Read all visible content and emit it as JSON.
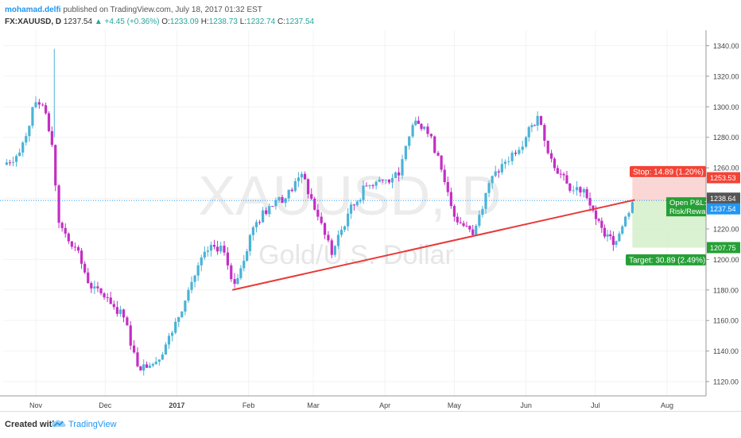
{
  "header": {
    "author": "mohamad.delfi",
    "published_text": "published on TradingView.com, July 18, 2017 01:32 EST"
  },
  "ohlc": {
    "symbol": "FX:XAUUSD, D",
    "close": "1237.54",
    "change": "+4.45 (+0.36%)",
    "o_label": "O:",
    "o": "1233.09",
    "h_label": "H:",
    "h": "1238.73",
    "l_label": "L:",
    "l": "1232.74",
    "c_label": "C:",
    "c": "1237.54",
    "up_arrow": "▲"
  },
  "watermark": {
    "symbol": "XAUUSD, D",
    "description": "Gold/U.S. Dollar"
  },
  "footer": {
    "created_with": "Created with",
    "brand": "TradingView"
  },
  "colors": {
    "up_candle": "#4bb3d6",
    "down_candle": "#c42ec4",
    "trendline": "#e83a3a",
    "stop_zone": "#f9d2d0",
    "target_zone": "#d6f0cd",
    "stop_label": "#f44336",
    "target_label": "#26a036",
    "last_price": "#2196f3"
  },
  "chart_data": {
    "type": "candlestick",
    "y_axis": {
      "ylim": [
        1110,
        1347
      ],
      "ticks": [
        1120,
        1140,
        1160,
        1180,
        1200,
        1220,
        1240,
        1260,
        1280,
        1300,
        1320,
        1340
      ]
    },
    "x_axis": {
      "tick_labels": [
        "Nov",
        "Dec",
        "2017",
        "Feb",
        "Mar",
        "Apr",
        "May",
        "Jun",
        "Jul",
        "Aug"
      ]
    },
    "grid": true,
    "candles": [
      {
        "date": "2016-10-18",
        "open": 1255,
        "close": 1262
      },
      {
        "date": "2016-10-25",
        "open": 1262,
        "close": 1270
      },
      {
        "date": "2016-11-01",
        "open": 1270,
        "close": 1303
      },
      {
        "date": "2016-11-04",
        "open": 1303,
        "close": 1301
      },
      {
        "date": "2016-11-08",
        "open": 1301,
        "close": 1275
      },
      {
        "date": "2016-11-11",
        "open": 1275,
        "close": 1224
      },
      {
        "date": "2016-11-18",
        "open": 1224,
        "close": 1208
      },
      {
        "date": "2016-11-25",
        "open": 1208,
        "close": 1181
      },
      {
        "date": "2016-12-02",
        "open": 1181,
        "close": 1175
      },
      {
        "date": "2016-12-09",
        "open": 1175,
        "close": 1162
      },
      {
        "date": "2016-12-15",
        "open": 1162,
        "close": 1130
      },
      {
        "date": "2016-12-23",
        "open": 1130,
        "close": 1133
      },
      {
        "date": "2016-12-30",
        "open": 1133,
        "close": 1152
      },
      {
        "date": "2017-01-06",
        "open": 1152,
        "close": 1180
      },
      {
        "date": "2017-01-13",
        "open": 1180,
        "close": 1205
      },
      {
        "date": "2017-01-20",
        "open": 1205,
        "close": 1209
      },
      {
        "date": "2017-01-26",
        "open": 1209,
        "close": 1184
      },
      {
        "date": "2017-02-03",
        "open": 1184,
        "close": 1221
      },
      {
        "date": "2017-02-10",
        "open": 1221,
        "close": 1235
      },
      {
        "date": "2017-02-17",
        "open": 1235,
        "close": 1240
      },
      {
        "date": "2017-02-24",
        "open": 1240,
        "close": 1256
      },
      {
        "date": "2017-03-03",
        "open": 1256,
        "close": 1228
      },
      {
        "date": "2017-03-09",
        "open": 1228,
        "close": 1203
      },
      {
        "date": "2017-03-16",
        "open": 1203,
        "close": 1230
      },
      {
        "date": "2017-03-24",
        "open": 1230,
        "close": 1248
      },
      {
        "date": "2017-03-31",
        "open": 1248,
        "close": 1252
      },
      {
        "date": "2017-04-07",
        "open": 1252,
        "close": 1255
      },
      {
        "date": "2017-04-13",
        "open": 1255,
        "close": 1288
      },
      {
        "date": "2017-04-18",
        "open": 1288,
        "close": 1287
      },
      {
        "date": "2017-04-24",
        "open": 1287,
        "close": 1268
      },
      {
        "date": "2017-05-01",
        "open": 1268,
        "close": 1228
      },
      {
        "date": "2017-05-09",
        "open": 1228,
        "close": 1216
      },
      {
        "date": "2017-05-16",
        "open": 1216,
        "close": 1250
      },
      {
        "date": "2017-05-23",
        "open": 1250,
        "close": 1264
      },
      {
        "date": "2017-06-01",
        "open": 1264,
        "close": 1280
      },
      {
        "date": "2017-06-06",
        "open": 1280,
        "close": 1294
      },
      {
        "date": "2017-06-12",
        "open": 1294,
        "close": 1266
      },
      {
        "date": "2017-06-20",
        "open": 1266,
        "close": 1245
      },
      {
        "date": "2017-06-26",
        "open": 1245,
        "close": 1246
      },
      {
        "date": "2017-06-30",
        "open": 1246,
        "close": 1232
      },
      {
        "date": "2017-07-05",
        "open": 1232,
        "close": 1215
      },
      {
        "date": "2017-07-10",
        "open": 1215,
        "close": 1212
      },
      {
        "date": "2017-07-14",
        "open": 1212,
        "close": 1228
      },
      {
        "date": "2017-07-17",
        "open": 1228,
        "close": 1237.54
      }
    ],
    "trendline": {
      "start": {
        "date": "2017-01-25",
        "price": 1180
      },
      "end": {
        "date": "2017-07-18",
        "price": 1239
      }
    },
    "position": {
      "entry": 1238.64,
      "stop": 1253.53,
      "target": 1207.75,
      "stop_label": "Stop: 14.89 (1.20%)",
      "target_label": "Target: 30.89 (2.49%)",
      "open_pl_label": "Open P&L:",
      "risk_reward_label": "Risk/Rewa"
    },
    "price_labels": {
      "stop": "1253.53",
      "entry": "1238.64",
      "last": "1237.54",
      "target": "1207.75"
    }
  }
}
